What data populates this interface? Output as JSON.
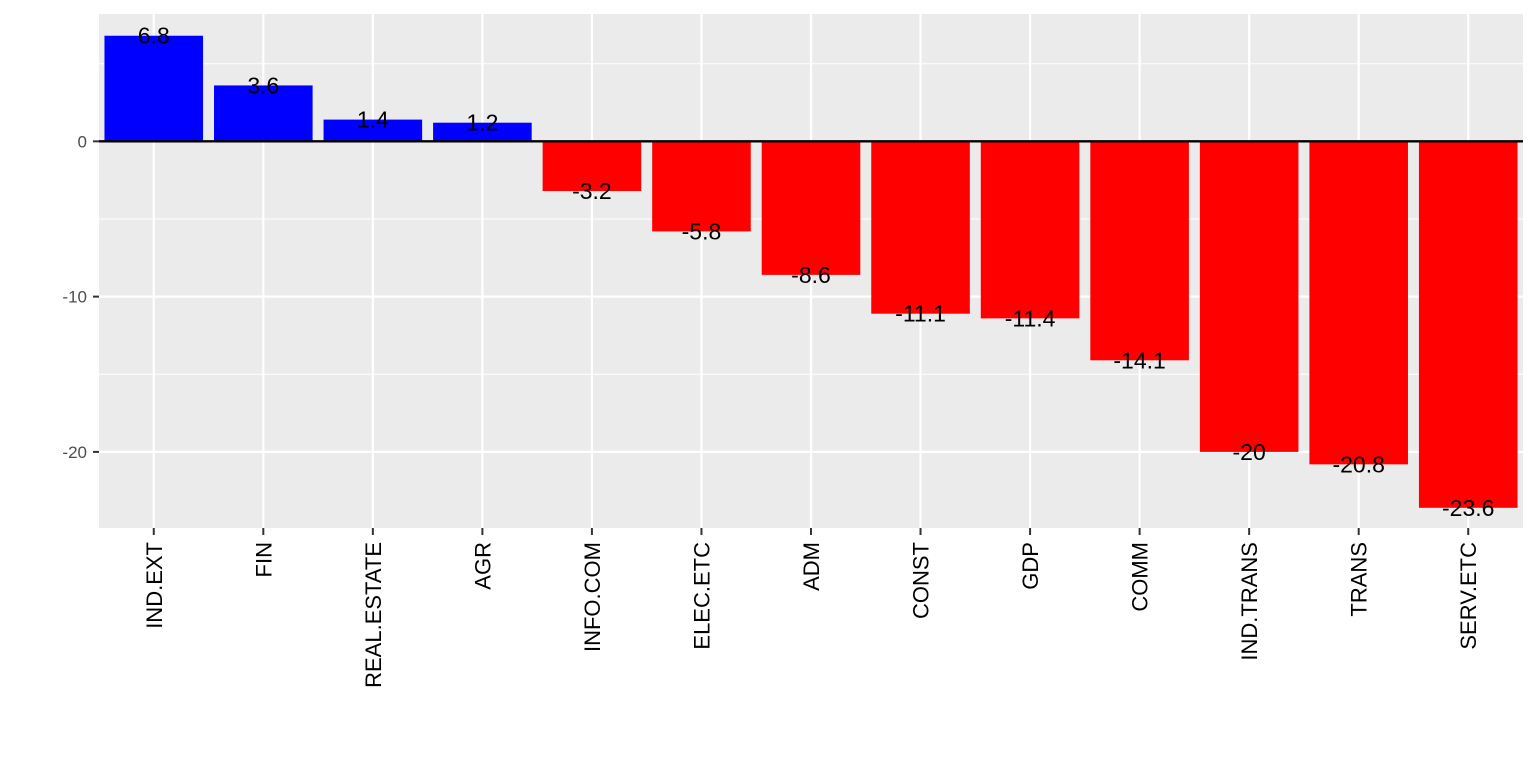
{
  "chart_data": {
    "type": "bar",
    "categories": [
      "IND.EXT",
      "FIN",
      "REAL.ESTATE",
      "AGR",
      "INFO.COM",
      "ELEC.ETC",
      "ADM",
      "CONST",
      "GDP",
      "COMM",
      "IND.TRANS",
      "TRANS",
      "SERV.ETC"
    ],
    "values": [
      6.8,
      3.6,
      1.4,
      1.2,
      -3.2,
      -5.8,
      -8.6,
      -11.1,
      -11.4,
      -14.1,
      -20,
      -20.8,
      -23.6
    ],
    "data_labels": [
      "6.8",
      "3.6",
      "1.4",
      "1.2",
      "-3.2",
      "-5.8",
      "-8.6",
      "-11.1",
      "-11.4",
      "-14.1",
      "-20",
      "-20.8",
      "-23.6"
    ],
    "yticks": [
      0,
      -10,
      -20
    ],
    "ytick_labels": [
      "0",
      "-10",
      "-20"
    ],
    "ylim": [
      -24.9,
      8.2
    ],
    "title": "",
    "xlabel": "",
    "ylabel": "",
    "grid": true,
    "colors": {
      "positive": "#0000ff",
      "negative": "#ff0000",
      "panel_background": "#ebebeb",
      "gridline": "#ffffff",
      "zero_line": "#000000"
    }
  }
}
